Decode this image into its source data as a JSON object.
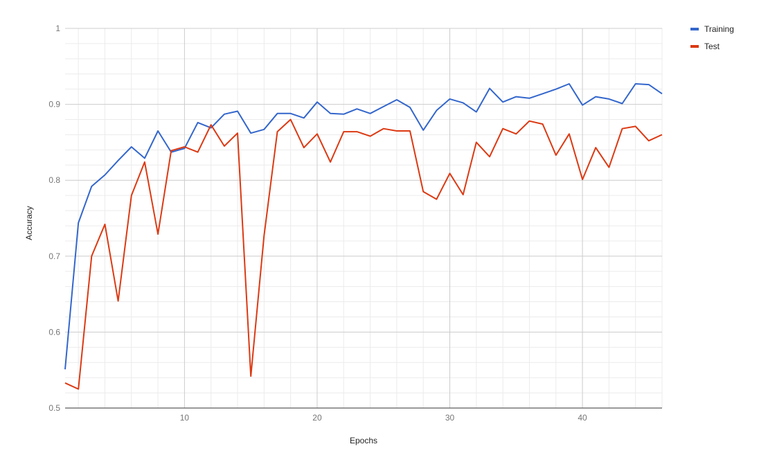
{
  "chart_data": {
    "type": "line",
    "xlabel": "Epochs",
    "ylabel": "Accuracy",
    "xlim": [
      1,
      46
    ],
    "ylim": [
      0.5,
      1
    ],
    "x_ticks": [
      10,
      20,
      30,
      40
    ],
    "y_ticks": [
      0.5,
      0.6,
      0.7,
      0.8,
      0.9,
      1
    ],
    "y_tick_labels": [
      "0.5",
      "0.6",
      "0.7",
      "0.8",
      "0.9",
      "1"
    ],
    "grid": true,
    "legend_position": "top-right",
    "x": [
      1,
      2,
      3,
      4,
      5,
      6,
      7,
      8,
      9,
      10,
      11,
      12,
      13,
      14,
      15,
      16,
      17,
      18,
      19,
      20,
      21,
      22,
      23,
      24,
      25,
      26,
      27,
      28,
      29,
      30,
      31,
      32,
      33,
      34,
      35,
      36,
      37,
      38,
      39,
      40,
      41,
      42,
      43,
      44,
      45,
      46
    ],
    "series": [
      {
        "name": "Training",
        "color": "#3366cc",
        "values": [
          0.551,
          0.744,
          0.792,
          0.807,
          0.826,
          0.844,
          0.829,
          0.865,
          0.837,
          0.842,
          0.876,
          0.869,
          0.887,
          0.891,
          0.862,
          0.867,
          0.888,
          0.888,
          0.882,
          0.903,
          0.888,
          0.887,
          0.894,
          0.888,
          0.897,
          0.906,
          0.896,
          0.866,
          0.892,
          0.907,
          0.902,
          0.89,
          0.921,
          0.903,
          0.91,
          0.908,
          0.914,
          0.92,
          0.927,
          0.899,
          0.91,
          0.907,
          0.901,
          0.927,
          0.926,
          0.914
        ]
      },
      {
        "name": "Test",
        "color": "#dc3912",
        "values": [
          0.533,
          0.525,
          0.7,
          0.742,
          0.641,
          0.78,
          0.824,
          0.729,
          0.839,
          0.844,
          0.837,
          0.873,
          0.845,
          0.862,
          0.542,
          0.727,
          0.864,
          0.88,
          0.843,
          0.861,
          0.824,
          0.864,
          0.864,
          0.858,
          0.868,
          0.865,
          0.865,
          0.785,
          0.775,
          0.809,
          0.781,
          0.85,
          0.831,
          0.868,
          0.861,
          0.878,
          0.874,
          0.833,
          0.861,
          0.801,
          0.843,
          0.817,
          0.868,
          0.871,
          0.852,
          0.86
        ]
      }
    ]
  }
}
